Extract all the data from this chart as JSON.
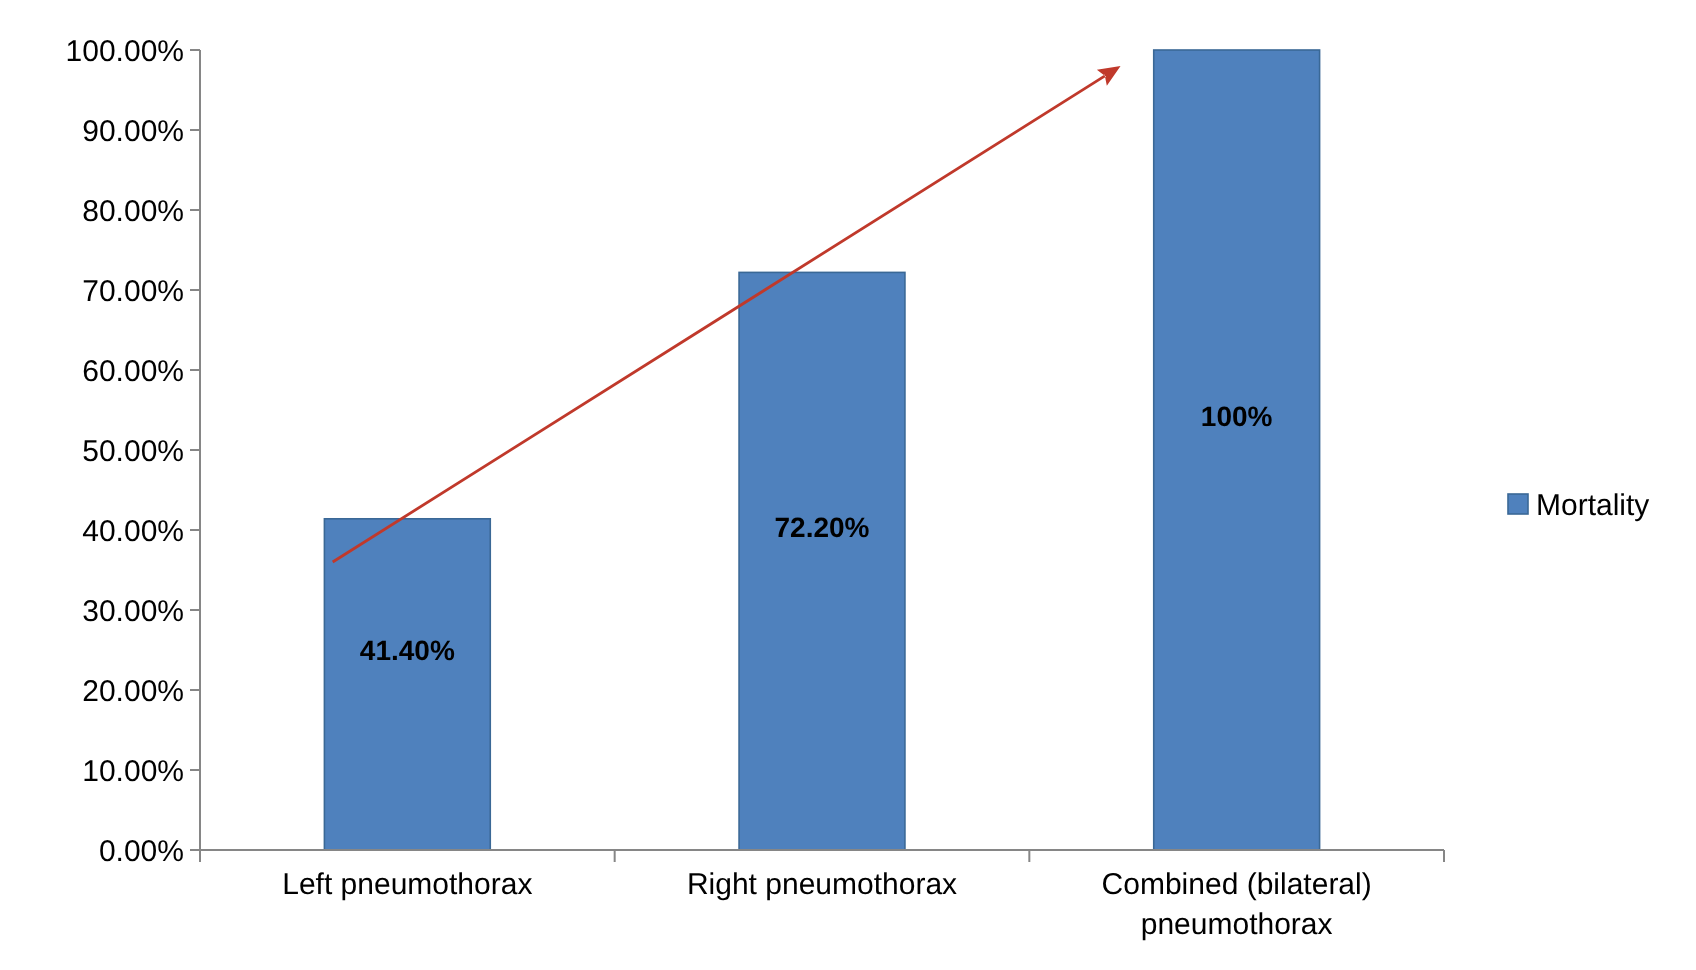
{
  "chart_data": {
    "type": "bar",
    "categories": [
      "Left pneumothorax",
      "Right pneumothorax",
      "Combined (bilateral) pneumothorax"
    ],
    "series": [
      {
        "name": "Mortality",
        "color": "#4f81bd",
        "values": [
          41.4,
          72.2,
          100
        ],
        "value_labels": [
          "41.40%",
          "72.20%",
          "100%"
        ]
      }
    ],
    "ylim": [
      0,
      100
    ],
    "yticks": [
      {
        "value": 0,
        "label": "0.00%"
      },
      {
        "value": 10,
        "label": "10.00%"
      },
      {
        "value": 20,
        "label": "20.00%"
      },
      {
        "value": 30,
        "label": "30.00%"
      },
      {
        "value": 40,
        "label": "40.00%"
      },
      {
        "value": 50,
        "label": "50.00%"
      },
      {
        "value": 60,
        "label": "60.00%"
      },
      {
        "value": 70,
        "label": "70.00%"
      },
      {
        "value": 80,
        "label": "80.00%"
      },
      {
        "value": 90,
        "label": "90.00%"
      },
      {
        "value": 100,
        "label": "100.00%"
      }
    ],
    "grid": false,
    "legend": "right"
  }
}
